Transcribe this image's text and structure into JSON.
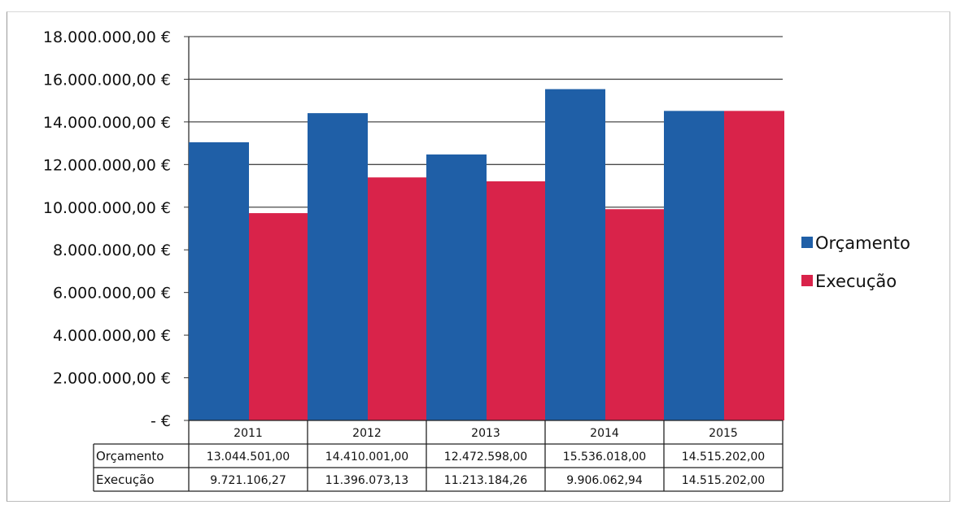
{
  "chart_data": {
    "type": "bar",
    "categories": [
      "2011",
      "2012",
      "2013",
      "2014",
      "2015"
    ],
    "series": [
      {
        "name": "Orçamento",
        "values": [
          13044501.0,
          14410001.0,
          12472598.0,
          15536018.0,
          14515202.0
        ],
        "color": "#1f5fa7"
      },
      {
        "name": "Execução",
        "values": [
          9721106.27,
          11396073.13,
          11213184.26,
          9906062.94,
          14515202.0
        ],
        "color": "#d9234a"
      }
    ],
    "ylim": [
      0,
      18000000
    ],
    "yticks": [
      0,
      2000000,
      4000000,
      6000000,
      8000000,
      10000000,
      12000000,
      14000000,
      16000000,
      18000000
    ],
    "ytick_labels": [
      "-   €",
      "2.000.000,00 €",
      "4.000.000,00 €",
      "6.000.000,00 €",
      "8.000.000,00 €",
      "10.000.000,00 €",
      "12.000.000,00 €",
      "14.000.000,00 €",
      "16.000.000,00 €",
      "18.000.000,00 €"
    ],
    "grid": true,
    "legend_position": "right",
    "data_table": {
      "rows": [
        {
          "label": "Orçamento",
          "cells": [
            "13.044.501,00",
            "14.410.001,00",
            "12.472.598,00",
            "15.536.018,00",
            "14.515.202,00"
          ]
        },
        {
          "label": "Execução",
          "cells": [
            "9.721.106,27",
            "11.396.073,13",
            "11.213.184,26",
            "9.906.062,94",
            "14.515.202,00"
          ]
        }
      ]
    }
  }
}
